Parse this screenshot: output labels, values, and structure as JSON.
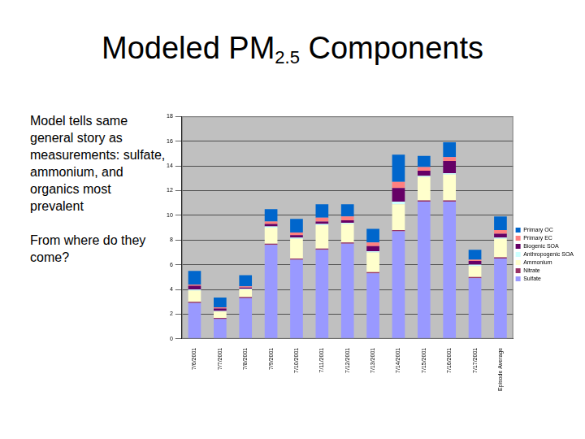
{
  "title": "Modeled PM2.5 Components",
  "text": [
    "Model tells same general story as measurements: sulfate, ammonium, and organics most prevalent",
    "From where do they come?"
  ],
  "chart_data": {
    "type": "bar",
    "stacked": true,
    "grid": true,
    "legend": "right",
    "categories": [
      "7/6/2001",
      "7/7/2001",
      "7/8/2001",
      "7/9/2001",
      "7/10/2001",
      "7/11/2001",
      "7/12/2001",
      "7/13/2001",
      "7/14/2001",
      "7/15/2001",
      "7/16/2001",
      "7/17/2001",
      "Episode Average"
    ],
    "ylim": [
      0,
      18
    ],
    "yticks": [
      0,
      2,
      4,
      6,
      8,
      10,
      12,
      14,
      16,
      18
    ],
    "series": [
      {
        "name": "Sulfate",
        "color": "#9999ff",
        "values": [
          2.9,
          1.6,
          3.3,
          7.6,
          6.4,
          7.2,
          7.7,
          5.3,
          8.7,
          11.1,
          11.1,
          4.9,
          6.5
        ]
      },
      {
        "name": "Nitrate",
        "color": "#993366",
        "values": [
          0.1,
          0.1,
          0.1,
          0.1,
          0.1,
          0.1,
          0.1,
          0.1,
          0.1,
          0.1,
          0.1,
          0.1,
          0.1
        ]
      },
      {
        "name": "Ammonium",
        "color": "#ffffcc",
        "values": [
          0.9,
          0.5,
          0.6,
          1.3,
          1.6,
          1.9,
          1.5,
          1.6,
          2.1,
          1.9,
          2.1,
          0.9,
          1.5
        ]
      },
      {
        "name": "Anthropogenic SOA",
        "color": "#ccffff",
        "values": [
          0.1,
          0.05,
          0.05,
          0.1,
          0.1,
          0.1,
          0.1,
          0.1,
          0.2,
          0.1,
          0.1,
          0.1,
          0.1
        ]
      },
      {
        "name": "Biogenic SOA",
        "color": "#660066",
        "values": [
          0.3,
          0.2,
          0.1,
          0.2,
          0.2,
          0.2,
          0.2,
          0.4,
          1.1,
          0.4,
          1.0,
          0.3,
          0.3
        ]
      },
      {
        "name": "Primary EC",
        "color": "#ff8080",
        "values": [
          0.1,
          0.1,
          0.1,
          0.2,
          0.2,
          0.3,
          0.3,
          0.3,
          0.5,
          0.3,
          0.3,
          0.1,
          0.3
        ]
      },
      {
        "name": "Primary OC",
        "color": "#0066cc",
        "values": [
          1.1,
          0.8,
          0.9,
          1.0,
          1.1,
          1.1,
          1.0,
          1.1,
          2.2,
          0.9,
          1.2,
          0.8,
          1.1
        ]
      }
    ]
  }
}
